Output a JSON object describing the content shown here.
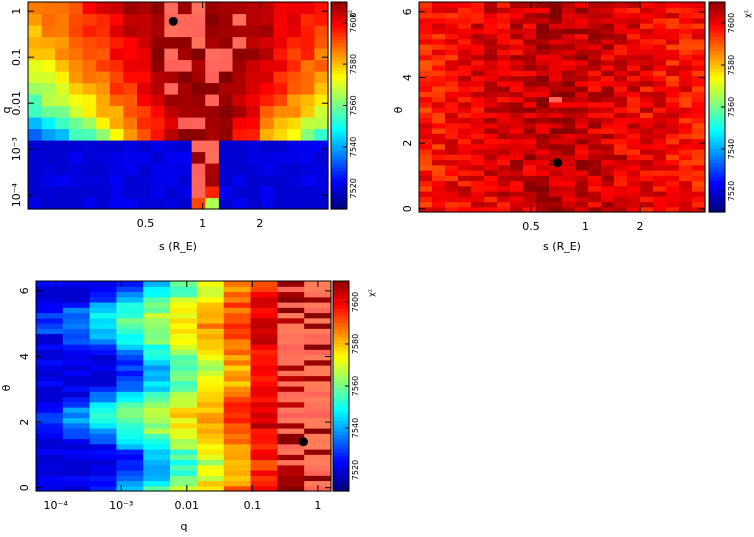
{
  "chart_data": [
    {
      "type": "heatmap",
      "panel": "top-left",
      "xlabel": "s (R_E)",
      "ylabel": "q",
      "x_ticks": [
        "0.5",
        "1",
        "2"
      ],
      "x_tick_values": [
        0.5,
        1,
        2
      ],
      "y_ticks": [
        "1",
        "0.1",
        "0.01",
        "10⁻³",
        "10⁻⁴"
      ],
      "y_tick_values": [
        0,
        -1,
        -2,
        -3,
        -4
      ],
      "xlim_log10": [
        -0.92,
        0.66
      ],
      "ylim_log10": [
        -4.3,
        0.2
      ],
      "best_fit": {
        "s": 0.7,
        "log10_q": -0.22
      },
      "colorbar_label": "χ²",
      "colorbar_ticks": [
        "7520",
        "7540",
        "7560",
        "7580",
        "7600"
      ],
      "colorbar_range": [
        7510,
        7610
      ]
    },
    {
      "type": "heatmap",
      "panel": "top-right",
      "xlabel": "s (R_E)",
      "ylabel": "θ",
      "x_ticks": [
        "0.5",
        "1",
        "2"
      ],
      "x_tick_values": [
        0.5,
        1,
        2
      ],
      "y_ticks": [
        "0",
        "2",
        "4",
        "6"
      ],
      "y_tick_values": [
        0,
        2,
        4,
        6
      ],
      "xlim_log10": [
        -0.92,
        0.66
      ],
      "ylim": [
        -0.1,
        6.3
      ],
      "best_fit": {
        "s": 0.7,
        "theta": 1.4
      },
      "colorbar_label": "χ²",
      "colorbar_ticks": [
        "7520",
        "7540",
        "7560",
        "7580",
        "7600"
      ],
      "colorbar_range": [
        7510,
        7610
      ]
    },
    {
      "type": "heatmap",
      "panel": "bottom-left",
      "xlabel": "q",
      "ylabel": "θ",
      "x_ticks": [
        "10⁻⁴",
        "10⁻³",
        "0.01",
        "0.1",
        "1"
      ],
      "x_tick_values": [
        -4,
        -3,
        -2,
        -1,
        0
      ],
      "y_ticks": [
        "0",
        "2",
        "4",
        "6"
      ],
      "y_tick_values": [
        0,
        2,
        4,
        6
      ],
      "xlim_log10": [
        -4.3,
        0.2
      ],
      "ylim": [
        -0.1,
        6.3
      ],
      "best_fit": {
        "log10_q": -0.22,
        "theta": 1.4
      },
      "colorbar_label": "χ²",
      "colorbar_ticks": [
        "7520",
        "7540",
        "7560",
        "7580",
        "7600"
      ],
      "colorbar_range": [
        7510,
        7610
      ]
    }
  ]
}
